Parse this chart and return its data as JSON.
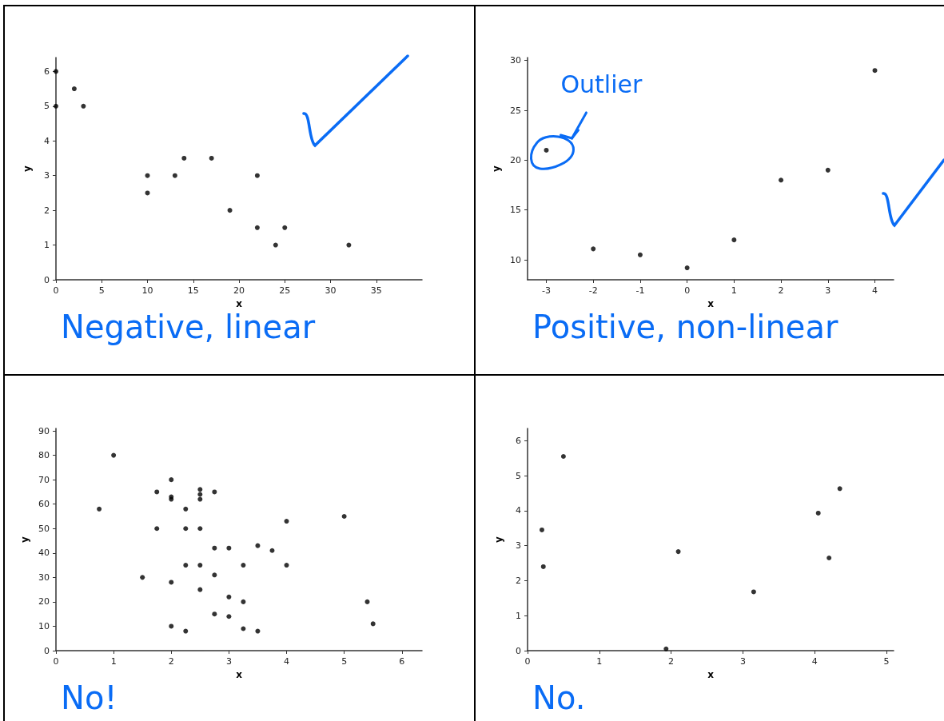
{
  "chart_data": [
    {
      "type": "scatter",
      "xlabel": "x",
      "ylabel": "y",
      "xlim": [
        0,
        40
      ],
      "ylim": [
        0,
        6.4
      ],
      "xticks": [
        0,
        5,
        10,
        15,
        20,
        25,
        30,
        35
      ],
      "yticks": [
        0,
        1,
        2,
        3,
        4,
        5,
        6
      ],
      "grid": false,
      "marker": "circle",
      "annotations": [
        "Negative, linear"
      ],
      "series": [
        {
          "color": "#000000",
          "x": [
            0,
            0,
            2,
            3,
            10,
            10,
            13,
            14,
            17,
            19,
            22,
            22,
            24,
            25,
            32
          ],
          "values": [
            6,
            5,
            5.5,
            5,
            3,
            2.5,
            3,
            3.5,
            3.5,
            2,
            3,
            1.5,
            1,
            1.5,
            1
          ]
        }
      ]
    },
    {
      "type": "scatter",
      "xlabel": "x",
      "ylabel": "y",
      "xlim": [
        -3.4,
        4.4
      ],
      "ylim": [
        8,
        30.3
      ],
      "xticks": [
        -3,
        -2,
        -1,
        0,
        1,
        2,
        3,
        4
      ],
      "yticks": [
        10,
        15,
        20,
        25,
        30
      ],
      "grid": false,
      "marker": "circle",
      "annotations": [
        "Positive, non-linear",
        {
          "text": "Outlier",
          "x": -3,
          "y": 21
        }
      ],
      "series": [
        {
          "color": "#000000",
          "x": [
            -3,
            -2,
            -1,
            0,
            1,
            2,
            3,
            4
          ],
          "values": [
            21,
            11.1,
            10.5,
            9.2,
            12,
            18,
            19,
            29
          ]
        }
      ]
    },
    {
      "type": "scatter",
      "xlabel": "x",
      "ylabel": "y",
      "xlim": [
        0,
        6.35
      ],
      "ylim": [
        0,
        91
      ],
      "xticks": [
        0,
        1,
        2,
        3,
        4,
        5,
        6
      ],
      "yticks": [
        0,
        10,
        20,
        30,
        40,
        50,
        60,
        70,
        80,
        90
      ],
      "grid": false,
      "marker": "circle",
      "annotations": [
        "No!"
      ],
      "series": [
        {
          "color": "#000000",
          "x": [
            0.75,
            1,
            1.5,
            1.75,
            1.75,
            2,
            2,
            2,
            2,
            2,
            2.25,
            2.25,
            2.25,
            2.25,
            2.5,
            2.5,
            2.5,
            2.5,
            2.5,
            2.5,
            2.75,
            2.75,
            2.75,
            2.75,
            3,
            3,
            3,
            3.25,
            3.25,
            3.25,
            3.5,
            3.5,
            3.75,
            4,
            4,
            5,
            5.4,
            5.5
          ],
          "values": [
            58,
            80,
            30,
            65,
            50,
            70,
            63,
            62,
            28,
            10,
            58,
            50,
            35,
            8,
            66,
            64,
            62,
            50,
            35,
            25,
            65,
            42,
            31,
            15,
            42,
            22,
            14,
            35,
            20,
            9,
            43,
            8,
            41,
            53,
            35,
            55,
            20,
            11
          ]
        }
      ]
    },
    {
      "type": "scatter",
      "xlabel": "x",
      "ylabel": "y",
      "xlim": [
        0,
        5.1
      ],
      "ylim": [
        0,
        6.35
      ],
      "xticks": [
        0,
        1,
        2,
        3,
        4,
        5
      ],
      "yticks": [
        0,
        1,
        2,
        3,
        4,
        5,
        6
      ],
      "grid": false,
      "marker": "circle",
      "annotations": [
        "No."
      ],
      "series": [
        {
          "color": "#000000",
          "x": [
            0.2,
            0.22,
            0.5,
            1.93,
            2.1,
            3.15,
            4.05,
            4.2,
            4.35
          ],
          "values": [
            3.45,
            2.4,
            5.55,
            0.05,
            2.83,
            1.68,
            3.93,
            2.65,
            4.63
          ]
        }
      ]
    }
  ]
}
